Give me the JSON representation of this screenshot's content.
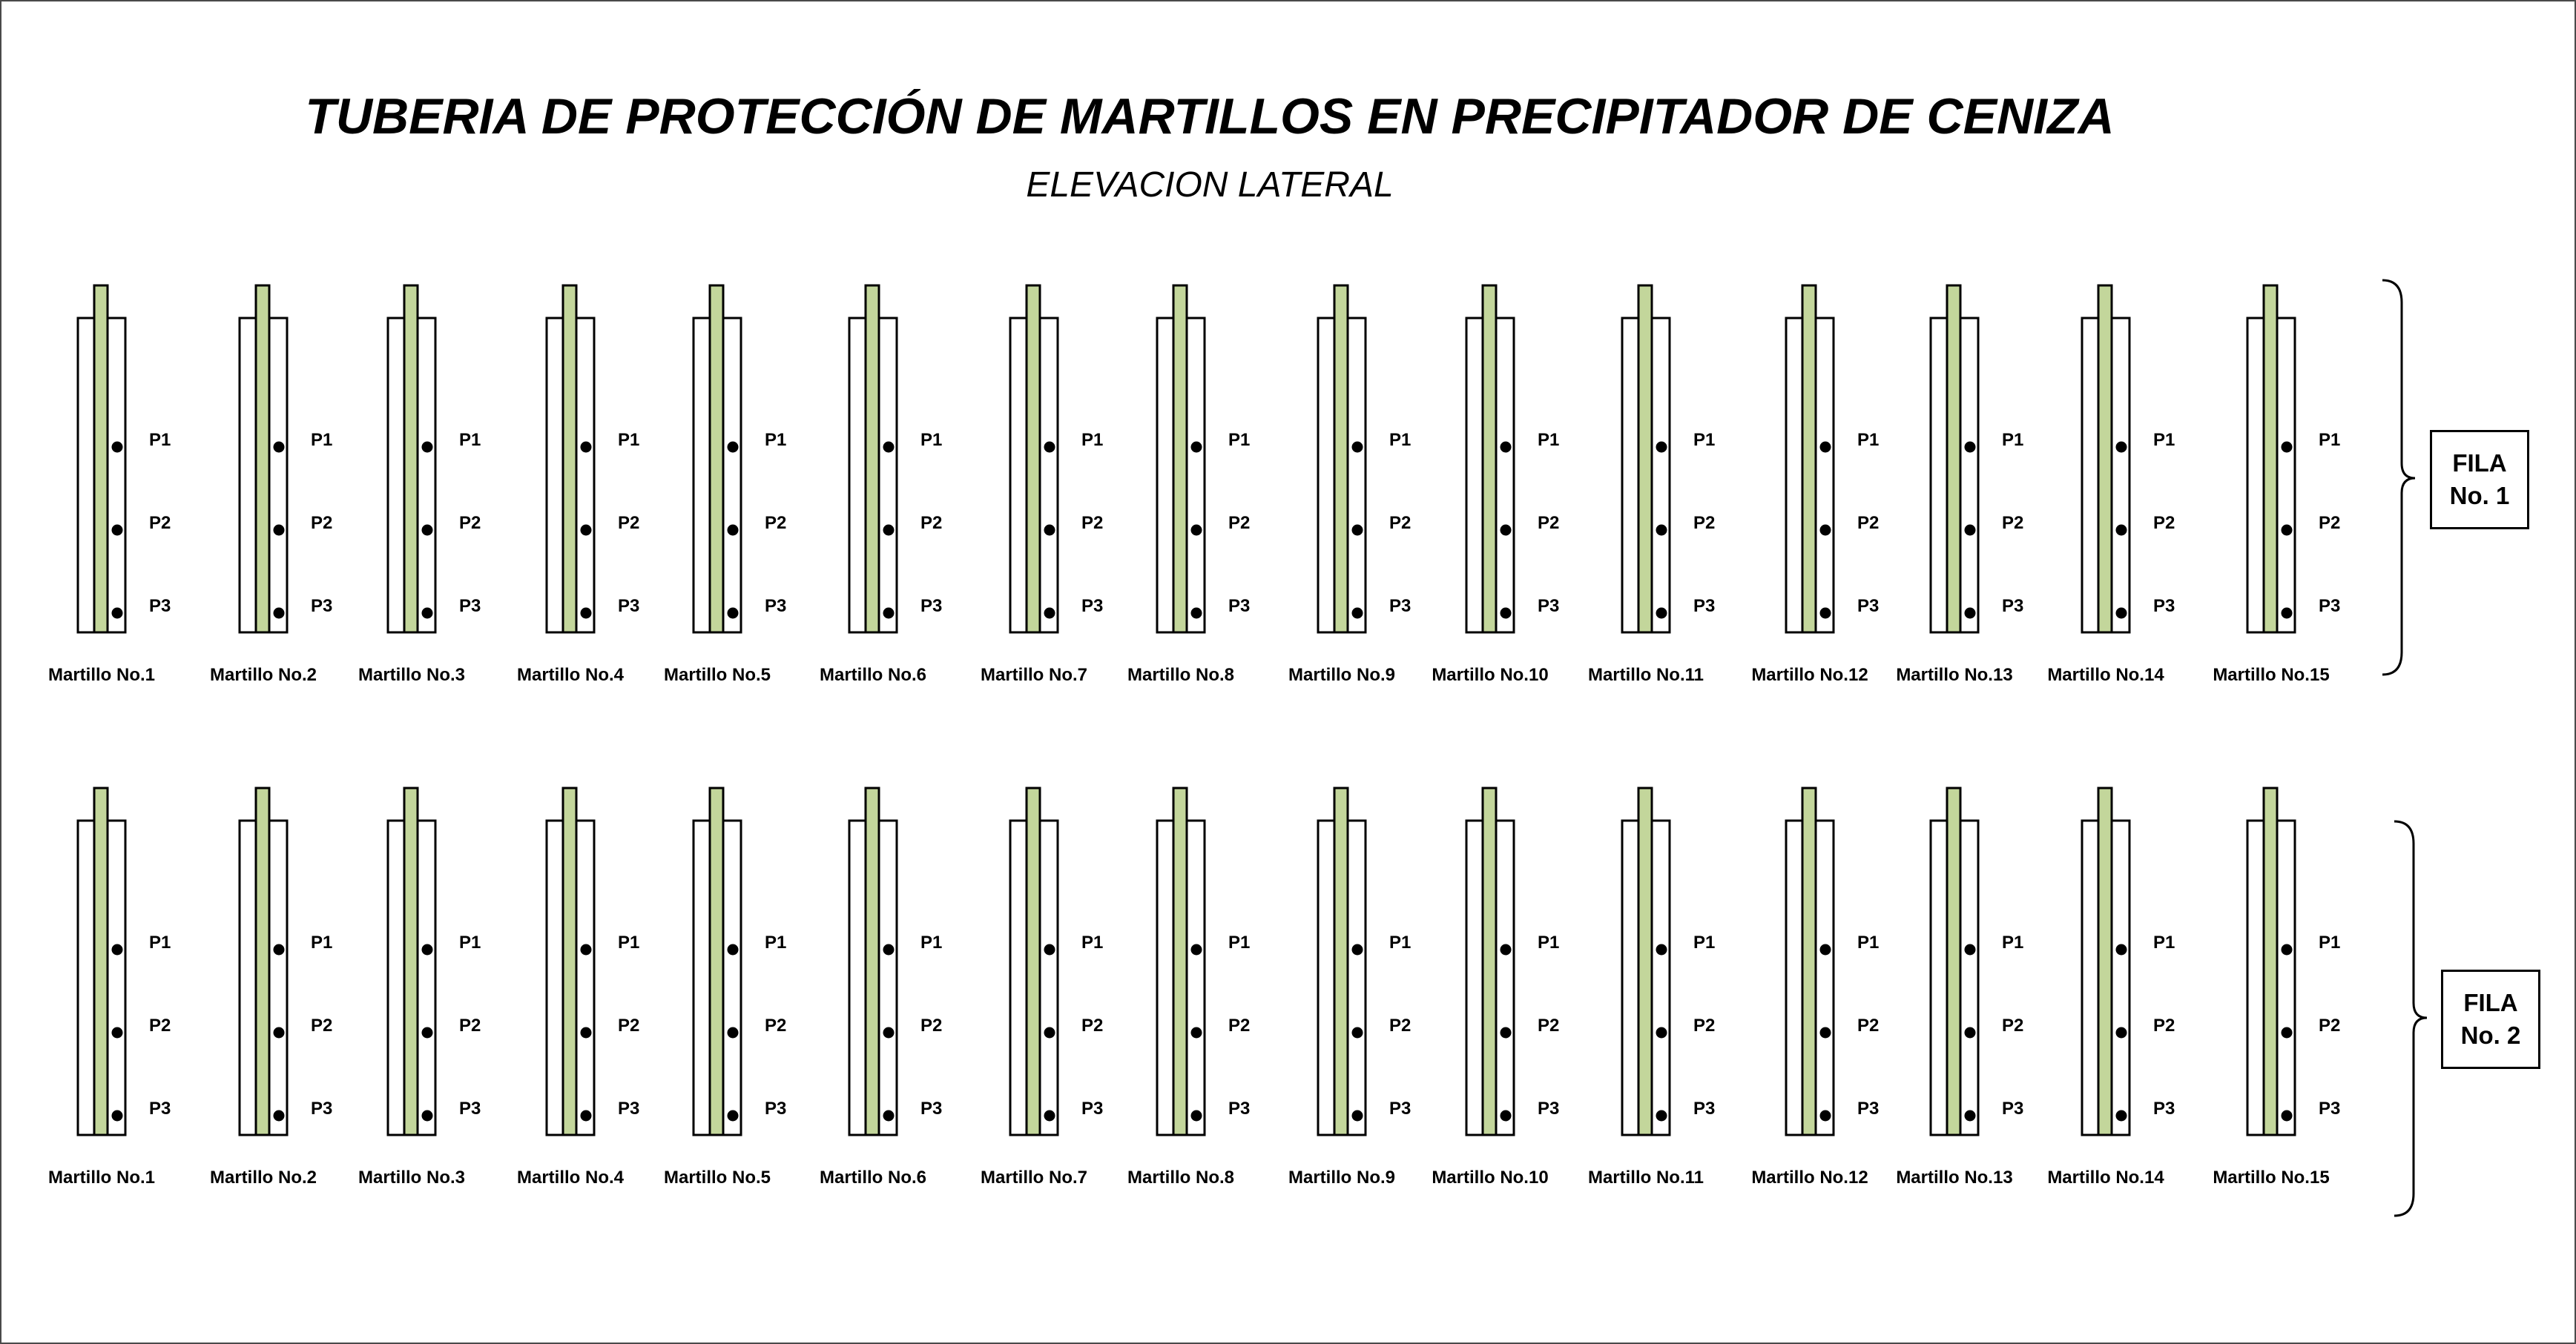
{
  "title": "TUBERIA DE PROTECCIÓN DE MARTILLOS EN PRECIPITADOR DE CENIZA",
  "subtitle": "ELEVACION LATERAL",
  "point_labels": [
    "P1",
    "P2",
    "P3"
  ],
  "rows": [
    {
      "label_line1": "FILA",
      "label_line2": "No. 1",
      "hammers": [
        "Martillo No.1",
        "Martillo No.2",
        "Martillo No.3",
        "Martillo No.4",
        "Martillo No.5",
        "Martillo No.6",
        "Martillo No.7",
        "Martillo No.8",
        "Martillo No.9",
        "Martillo No.10",
        "Martillo No.11",
        "Martillo No.12",
        "Martillo No.13",
        "Martillo No.14",
        "Martillo No.15"
      ]
    },
    {
      "label_line1": "FILA",
      "label_line2": "No. 2",
      "hammers": [
        "Martillo No.1",
        "Martillo No.2",
        "Martillo No.3",
        "Martillo No.4",
        "Martillo No.5",
        "Martillo No.6",
        "Martillo No.7",
        "Martillo No.8",
        "Martillo No.9",
        "Martillo No.10",
        "Martillo No.11",
        "Martillo No.12",
        "Martillo No.13",
        "Martillo No.14",
        "Martillo No.15"
      ]
    }
  ],
  "colors": {
    "rod_fill": "#c3d69b",
    "outline": "#000000",
    "background": "#ffffff"
  }
}
